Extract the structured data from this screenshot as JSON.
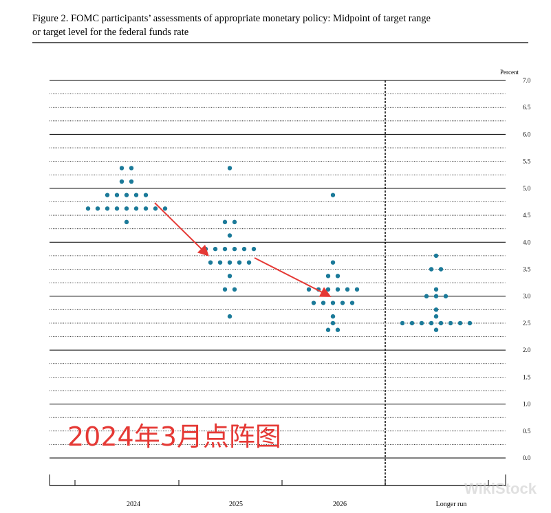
{
  "chart_data": {
    "type": "dot",
    "title_lines": [
      "Figure 2.  FOMC participants’ assessments of appropriate monetary policy: Midpoint of target range",
      "or target level for the federal funds rate"
    ],
    "y_label": "Percent",
    "categories": [
      "2024",
      "2025",
      "2026",
      "Longer run"
    ],
    "color": "#1b7a99",
    "levels": [
      [
        5.375,
        5.125,
        4.875,
        4.625,
        4.375
      ],
      [
        5.375,
        4.375,
        4.125,
        3.875,
        3.625,
        3.375,
        3.125,
        2.625
      ],
      [
        4.875,
        3.625,
        3.375,
        3.125,
        2.875,
        2.625,
        2.5,
        2.375
      ],
      [
        3.75,
        3.5,
        3.125,
        3.0,
        2.75,
        2.625,
        2.5,
        2.375
      ]
    ],
    "counts": [
      [
        2,
        2,
        5,
        9,
        1
      ],
      [
        1,
        2,
        1,
        6,
        5,
        1,
        2,
        1
      ],
      [
        1,
        1,
        2,
        6,
        5,
        1,
        1,
        2
      ],
      [
        1,
        2,
        1,
        3,
        1,
        1,
        8,
        1
      ]
    ],
    "ylim": [
      0,
      7
    ],
    "yticks": [
      {
        "value": 0,
        "label": "0.0"
      },
      {
        "value": 0.5,
        "label": "0.5"
      },
      {
        "value": 1,
        "label": "1.0"
      },
      {
        "value": 1.5,
        "label": "1.5"
      },
      {
        "value": 2,
        "label": "2.0"
      },
      {
        "value": 2.5,
        "label": "2.5"
      },
      {
        "value": 3,
        "label": "3.0"
      },
      {
        "value": 3.5,
        "label": "3.5"
      },
      {
        "value": 4,
        "label": "4.0"
      },
      {
        "value": 4.5,
        "label": "4.5"
      },
      {
        "value": 5,
        "label": "5.0"
      },
      {
        "value": 5.5,
        "label": "5.5"
      },
      {
        "value": 6,
        "label": "6.0"
      },
      {
        "value": 6.5,
        "label": "6.5"
      },
      {
        "value": 7,
        "label": "7.0"
      }
    ],
    "annotation": "2024年3月点阵图",
    "watermark": "WikiStock"
  }
}
